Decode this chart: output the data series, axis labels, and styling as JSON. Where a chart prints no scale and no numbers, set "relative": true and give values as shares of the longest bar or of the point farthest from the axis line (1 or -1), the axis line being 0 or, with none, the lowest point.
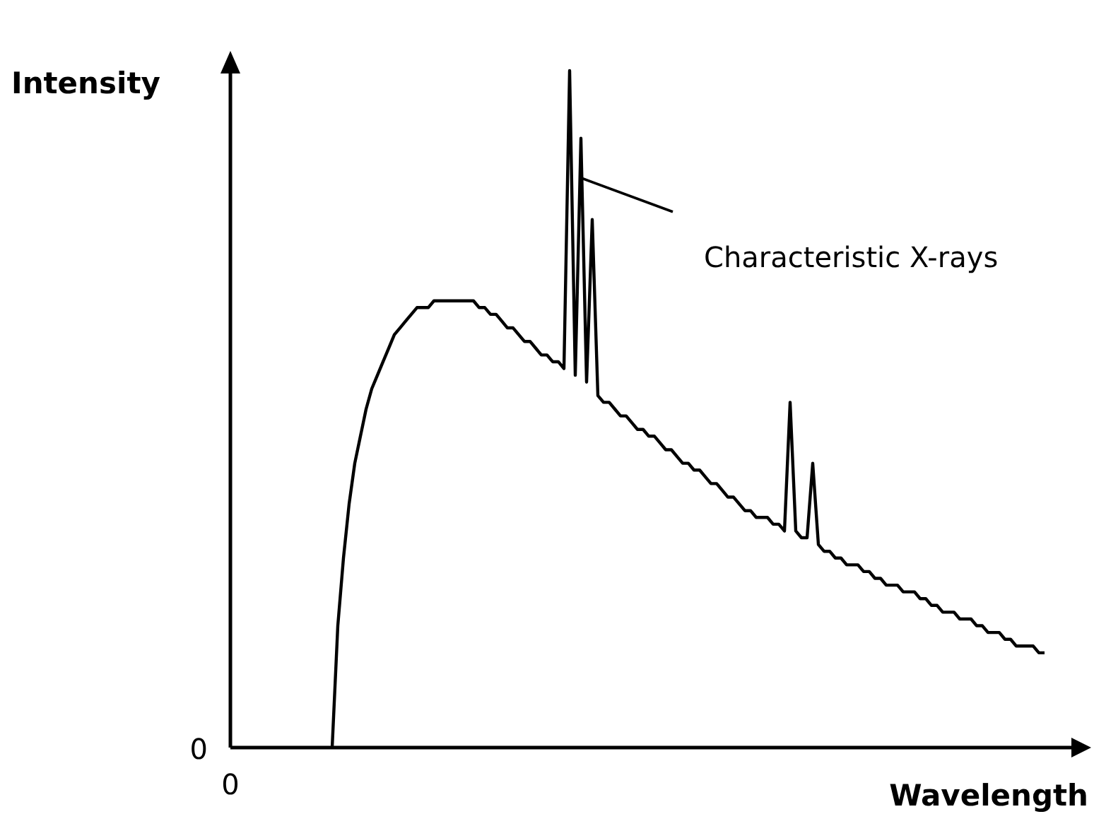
{
  "chart_data": {
    "type": "line",
    "relative": true,
    "xlabel": "Wavelength",
    "ylabel": "Intensity",
    "color": "#000000",
    "marker": "none",
    "legend": false,
    "annotations": [
      "Characteristic X-rays",
      "0",
      "0"
    ],
    "categories": [
      null,
      null,
      null,
      null,
      null,
      null,
      null,
      null,
      null,
      null,
      null,
      null,
      null,
      null,
      null,
      null,
      null,
      null,
      null,
      null,
      null,
      null,
      null,
      null,
      null,
      null,
      null,
      null,
      null,
      null,
      null,
      null,
      null,
      null,
      null,
      null,
      null,
      null,
      null,
      null,
      null,
      null,
      null,
      null,
      null,
      null,
      null,
      null,
      null,
      null,
      null,
      null,
      null,
      null,
      null,
      null,
      null,
      null,
      null,
      null,
      null,
      null,
      null,
      null,
      null,
      null,
      null,
      null,
      null,
      null,
      null,
      null,
      null,
      null,
      null,
      null,
      null,
      null,
      null,
      null,
      null,
      null,
      null,
      null,
      null,
      null,
      null,
      null,
      null,
      null,
      null,
      null,
      null,
      null,
      null,
      null,
      null,
      null,
      null,
      null,
      null,
      null,
      null,
      null,
      null,
      null,
      null,
      null,
      null,
      null,
      null,
      null,
      null,
      null,
      null,
      null,
      null,
      null,
      null,
      null,
      null,
      null,
      null,
      null,
      null,
      null,
      null,
      null,
      null,
      null,
      null,
      null,
      null,
      null,
      null,
      null,
      null,
      null,
      null,
      null,
      null,
      null,
      null,
      null,
      null
    ],
    "values": [
      null,
      null,
      null,
      null,
      null,
      null,
      null,
      null,
      null,
      null,
      null,
      null,
      null,
      null,
      null,
      null,
      null,
      null,
      0,
      0.18,
      0.28,
      0.36,
      0.42,
      0.46,
      0.5,
      0.53,
      0.55,
      0.57,
      0.59,
      0.61,
      0.62,
      0.63,
      0.64,
      0.65,
      0.65,
      0.65,
      0.66,
      0.66,
      0.66,
      0.66,
      0.66,
      0.66,
      0.66,
      0.66,
      0.65,
      0.65,
      0.64,
      0.64,
      0.63,
      0.62,
      0.62,
      0.61,
      0.6,
      0.6,
      0.59,
      0.58,
      0.58,
      0.57,
      0.57,
      0.56,
      1,
      0.55,
      0.9,
      0.54,
      0.78,
      0.52,
      0.51,
      0.51,
      0.5,
      0.49,
      0.49,
      0.48,
      0.47,
      0.47,
      0.46,
      0.46,
      0.45,
      0.44,
      0.44,
      0.43,
      0.42,
      0.42,
      0.41,
      0.41,
      0.4,
      0.39,
      0.39,
      0.38,
      0.37,
      0.37,
      0.36,
      0.35,
      0.35,
      0.34,
      0.34,
      0.34,
      0.33,
      0.33,
      0.32,
      0.51,
      0.32,
      0.31,
      0.31,
      0.42,
      0.3,
      0.29,
      0.29,
      0.28,
      0.28,
      0.27,
      0.27,
      0.27,
      0.26,
      0.26,
      0.25,
      0.25,
      0.24,
      0.24,
      0.24,
      0.23,
      0.23,
      0.23,
      0.22,
      0.22,
      0.21,
      0.21,
      0.2,
      0.2,
      0.2,
      0.19,
      0.19,
      0.19,
      0.18,
      0.18,
      0.17,
      0.17,
      0.17,
      0.16,
      0.16,
      0.15,
      0.15,
      0.15,
      0.15,
      0.14,
      0.14
    ]
  }
}
